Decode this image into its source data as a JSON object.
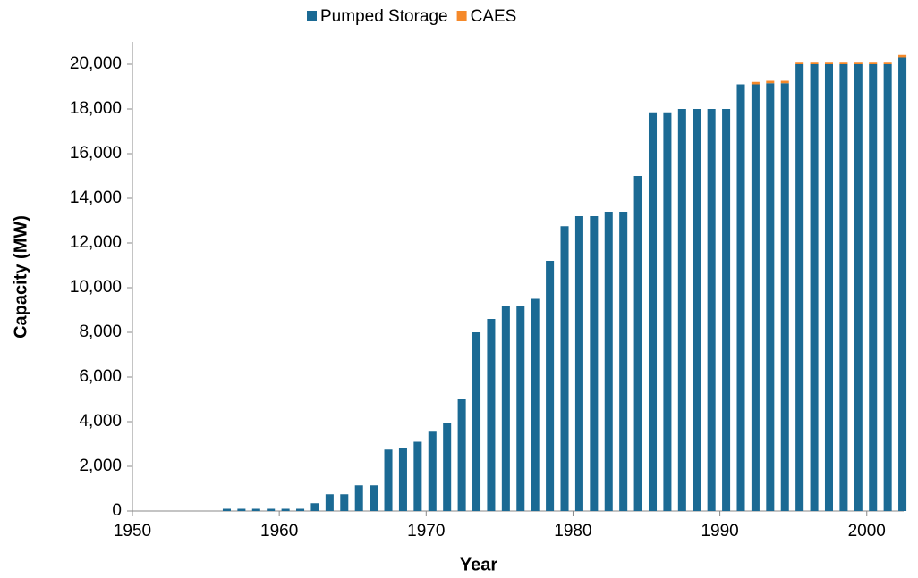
{
  "chart_data": {
    "type": "stacked-bar",
    "xlabel": "Year",
    "ylabel": "Capacity (MW)",
    "x": [
      1956,
      1957,
      1958,
      1959,
      1960,
      1961,
      1962,
      1963,
      1964,
      1965,
      1966,
      1967,
      1968,
      1969,
      1970,
      1971,
      1972,
      1973,
      1974,
      1975,
      1976,
      1977,
      1978,
      1979,
      1980,
      1981,
      1982,
      1983,
      1984,
      1985,
      1986,
      1987,
      1988,
      1989,
      1990,
      1991,
      1992,
      1993,
      1994,
      1995,
      1996,
      1997,
      1998,
      1999,
      2000,
      2001,
      2002
    ],
    "series": [
      {
        "name": "Pumped Storage",
        "color": "#1b6a94",
        "values": [
          100,
          100,
          100,
          100,
          100,
          100,
          350,
          750,
          750,
          1150,
          1150,
          2750,
          2800,
          3100,
          3550,
          3950,
          5000,
          8000,
          8600,
          9200,
          9200,
          9500,
          11200,
          12750,
          13200,
          13200,
          13400,
          13400,
          15000,
          17850,
          17850,
          18000,
          18000,
          18000,
          18000,
          19100,
          19100,
          19150,
          19150,
          20000,
          20000,
          20000,
          20000,
          20000,
          20000,
          20000,
          20300
        ]
      },
      {
        "name": "CAES",
        "color": "#f5892a",
        "values": [
          0,
          0,
          0,
          0,
          0,
          0,
          0,
          0,
          0,
          0,
          0,
          0,
          0,
          0,
          0,
          0,
          0,
          0,
          0,
          0,
          0,
          0,
          0,
          0,
          0,
          0,
          0,
          0,
          0,
          0,
          0,
          0,
          0,
          0,
          0,
          0,
          110,
          110,
          110,
          110,
          110,
          110,
          110,
          110,
          110,
          110,
          110
        ]
      }
    ],
    "xlim": [
      1950,
      2003
    ],
    "xticks": [
      1950,
      1960,
      1970,
      1980,
      1990,
      2000
    ],
    "ylim": [
      0,
      21000
    ],
    "yticks": [
      0,
      {
        "value": 2000,
        "label": "2,000"
      },
      {
        "value": 4000,
        "label": "4,000"
      },
      {
        "value": 6000,
        "label": "6,000"
      },
      {
        "value": 8000,
        "label": "8,000"
      },
      {
        "value": 10000,
        "label": "10,000"
      },
      {
        "value": 12000,
        "label": "12,000"
      },
      {
        "value": 14000,
        "label": "14,000"
      },
      {
        "value": 16000,
        "label": "16,000"
      },
      {
        "value": 18000,
        "label": "18,000"
      },
      {
        "value": 20000,
        "label": "20,000"
      }
    ],
    "legend": "top",
    "grid": false
  }
}
